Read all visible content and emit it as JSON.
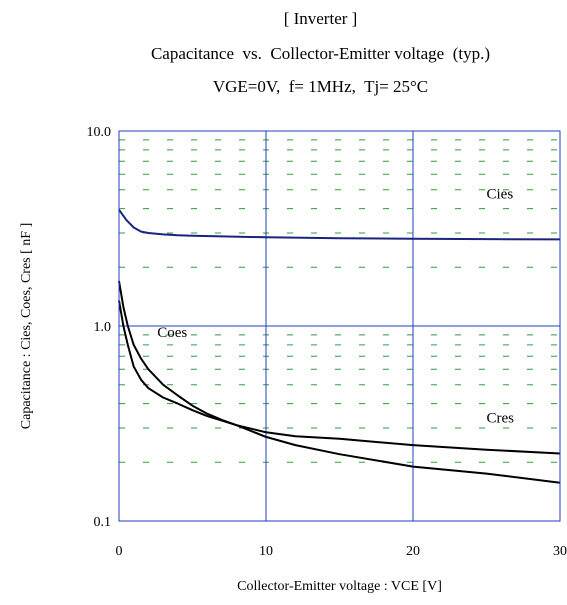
{
  "header": {
    "line1": "[ Inverter ]",
    "line2": "Capacitance  vs.  Collector-Emitter voltage  (typ.)",
    "line3": "VGE=0V,  f= 1MHz,  Tj= 25°C"
  },
  "chart_data": {
    "type": "line",
    "title": "Capacitance  vs.  Collector-Emitter voltage  (typ.)",
    "xlabel": "Collector-Emitter voltage : VCE [V]",
    "ylabel": "Capacitance :  Cies, Coes, Cres [ nF ]",
    "xlim": [
      0,
      30
    ],
    "ylim": [
      0.1,
      10.0
    ],
    "yscale": "log",
    "x_ticks": [
      "0",
      "10",
      "20",
      "30"
    ],
    "y_ticks": [
      "0.1",
      "1.0",
      "10.0"
    ],
    "grid": "on (major solid, minor dashed)",
    "colors": {
      "cies": "#1a237e",
      "coes": "#000000",
      "cres": "#000000",
      "major_grid": "#1f3fbf",
      "minor_grid": "#2e9d3a"
    },
    "series": [
      {
        "name": "Cies",
        "x": [
          0,
          0.5,
          1,
          1.5,
          2,
          3,
          4,
          5,
          7,
          10,
          15,
          20,
          25,
          30
        ],
        "values": [
          3.95,
          3.5,
          3.2,
          3.05,
          3.0,
          2.95,
          2.92,
          2.9,
          2.88,
          2.85,
          2.82,
          2.8,
          2.79,
          2.78
        ]
      },
      {
        "name": "Coes",
        "x": [
          0,
          0.3,
          0.6,
          1,
          1.5,
          2,
          3,
          4,
          5,
          6,
          7,
          8,
          10,
          12,
          15,
          20,
          25,
          30
        ],
        "values": [
          1.7,
          1.25,
          1.0,
          0.8,
          0.68,
          0.6,
          0.5,
          0.44,
          0.39,
          0.355,
          0.33,
          0.31,
          0.27,
          0.245,
          0.22,
          0.19,
          0.175,
          0.157
        ]
      },
      {
        "name": "Cres",
        "x": [
          0,
          0.3,
          0.6,
          1,
          1.5,
          2,
          3,
          4,
          5,
          6,
          8,
          10,
          12,
          15,
          20,
          25,
          30
        ],
        "values": [
          1.35,
          1.0,
          0.8,
          0.62,
          0.53,
          0.48,
          0.43,
          0.4,
          0.37,
          0.345,
          0.31,
          0.285,
          0.272,
          0.264,
          0.245,
          0.232,
          0.222
        ]
      }
    ],
    "annotations": [
      {
        "text": "Cies",
        "x": 25,
        "y": 4.5
      },
      {
        "text": "Coes",
        "x": 2.6,
        "y": 0.88
      },
      {
        "text": "Cres",
        "x": 25,
        "y": 0.32
      }
    ]
  }
}
